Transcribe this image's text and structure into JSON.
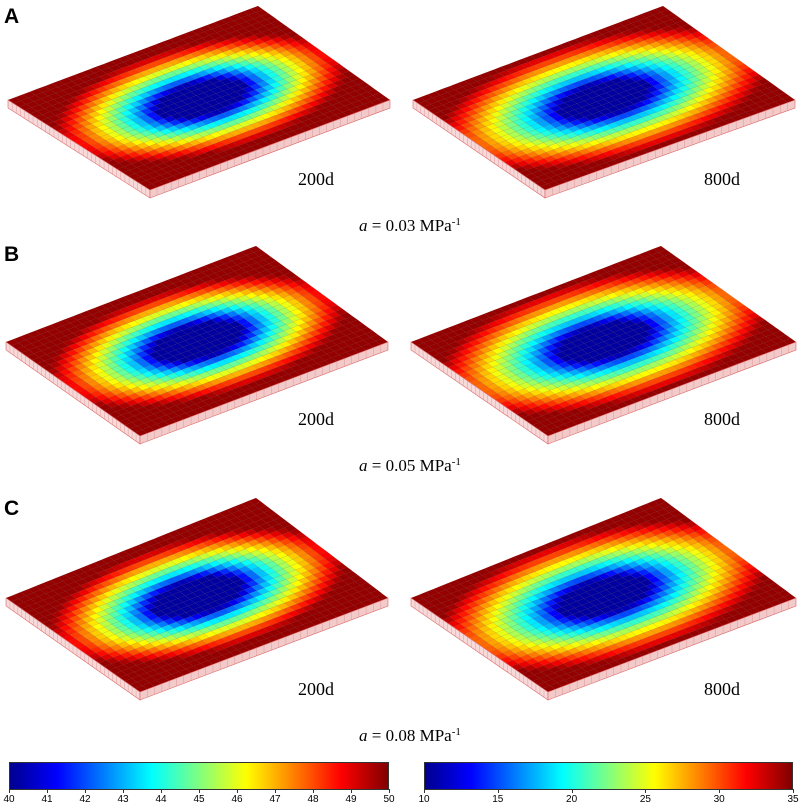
{
  "panels": [
    {
      "letter": "A",
      "param_prefix": "a",
      "param_value": "= 0.03 MPa",
      "param_exp": "-1",
      "plates": [
        {
          "time": "200d",
          "scale": "left"
        },
        {
          "time": "800d",
          "scale": "right"
        }
      ]
    },
    {
      "letter": "B",
      "param_prefix": "a",
      "param_value": "= 0.05 MPa",
      "param_exp": "-1",
      "plates": [
        {
          "time": "200d",
          "scale": "left"
        },
        {
          "time": "800d",
          "scale": "right"
        }
      ]
    },
    {
      "letter": "C",
      "param_prefix": "a",
      "param_value": "= 0.08 MPa",
      "param_exp": "-1",
      "plates": [
        {
          "time": "200d",
          "scale": "left"
        },
        {
          "time": "800d",
          "scale": "right"
        }
      ]
    }
  ],
  "colorbars": {
    "left": {
      "min": 40,
      "max": 50,
      "ticks": [
        "40",
        "41",
        "42",
        "43",
        "44",
        "45",
        "46",
        "47",
        "48",
        "49",
        "50"
      ]
    },
    "right": {
      "min": 10,
      "max": 35,
      "ticks": [
        "10",
        "15",
        "20",
        "25",
        "30",
        "35"
      ]
    }
  },
  "colormap": [
    "#00008f",
    "#0000ff",
    "#0080ff",
    "#00ffff",
    "#80ff80",
    "#ffff00",
    "#ff8000",
    "#ff0000",
    "#800000"
  ]
}
